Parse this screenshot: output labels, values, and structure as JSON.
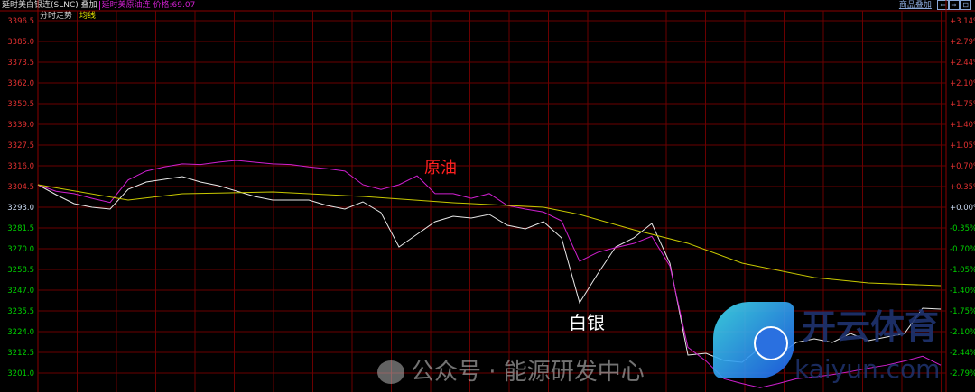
{
  "header": {
    "title": "延时美白银连(SLNC) 叠加",
    "overlay": "延时美原油连 价格:69.07",
    "sub_title": "分时走势",
    "avg_label": "均线",
    "overlay_button": "商品叠加",
    "nav_icons": [
      "arrow-left-icon",
      "arrow-right-icon",
      "restore-icon"
    ]
  },
  "colors": {
    "silver": "#e8e8e8",
    "crude": "#d020d0",
    "average": "#c8c800",
    "grid": "#6a0000",
    "up": "#e03030",
    "down": "#00d000",
    "flat": "#c8d8f0"
  },
  "chart_data": {
    "type": "line",
    "left_ticks": [
      "3396.5",
      "3385.0",
      "3373.5",
      "3362.0",
      "3350.5",
      "3339.0",
      "3327.5",
      "3316.0",
      "3304.5",
      "3293.0",
      "3281.5",
      "3270.0",
      "3258.5",
      "3247.0",
      "3235.5",
      "3224.0",
      "3212.5",
      "3201.0"
    ],
    "right_ticks": [
      "+3.14%",
      "+2.79%",
      "+2.44%",
      "+2.10%",
      "+1.75%",
      "+1.40%",
      "+1.05%",
      "+0.70%",
      "+0.35%",
      "+0.00%",
      "-0.35%",
      "-0.70%",
      "-1.05%",
      "-1.40%",
      "-1.75%",
      "-2.10%",
      "-2.44%",
      "-2.79%"
    ],
    "ylim": [
      3201.0,
      3396.5
    ],
    "base_price": 3293.0,
    "grid": true,
    "series": [
      {
        "key": "silver",
        "unit": "price",
        "values": [
          3305.5,
          3300,
          3295,
          3293,
          3292,
          3303,
          3307,
          3308.5,
          3310,
          3307,
          3305,
          3302,
          3299,
          3297,
          3297,
          3297,
          3294,
          3292,
          3296,
          3290,
          3271,
          3278,
          3285,
          3288,
          3287,
          3289,
          3283,
          3281,
          3285,
          3276,
          3240,
          3256,
          3271,
          3276,
          3284,
          3262,
          3211,
          3212,
          3208,
          3207,
          3215,
          3211,
          3218,
          3220,
          3218,
          3223,
          3219,
          3221,
          3223,
          3237,
          3236.5
        ]
      },
      {
        "key": "crude",
        "unit": "percent",
        "values": [
          0.38,
          0.27,
          0.23,
          0.15,
          0.08,
          0.46,
          0.61,
          0.68,
          0.73,
          0.72,
          0.76,
          0.79,
          0.76,
          0.73,
          0.72,
          0.68,
          0.65,
          0.61,
          0.38,
          0.3,
          0.38,
          0.53,
          0.23,
          0.23,
          0.15,
          0.23,
          0.03,
          -0.03,
          -0.08,
          -0.23,
          -0.91,
          -0.76,
          -0.68,
          -0.61,
          -0.49,
          -0.99,
          -2.36,
          -2.59,
          -2.89,
          -2.97,
          -3.04,
          -2.97,
          -2.89,
          -2.86,
          -2.82,
          -2.77,
          -2.71,
          -2.66,
          -2.59,
          -2.51,
          -2.66
        ]
      },
      {
        "key": "average",
        "unit": "price",
        "points": [
          [
            0,
            3305.5
          ],
          [
            5,
            3297
          ],
          [
            8,
            3300.5
          ],
          [
            13,
            3301.5
          ],
          [
            18,
            3299
          ],
          [
            23,
            3295.5
          ],
          [
            28,
            3293
          ],
          [
            30,
            3289
          ],
          [
            33,
            3280.5
          ],
          [
            36,
            3273
          ],
          [
            39,
            3262
          ],
          [
            43,
            3254
          ],
          [
            46,
            3251
          ],
          [
            50,
            3249.5
          ]
        ]
      }
    ],
    "annotations": [
      {
        "text": "原油",
        "series": "crude"
      },
      {
        "text": "白银",
        "series": "silver"
      }
    ]
  },
  "watermark": {
    "account": "公众号 · 能源研发中心",
    "brand": "开云体育",
    "brand_url": "kaiyun.com"
  }
}
